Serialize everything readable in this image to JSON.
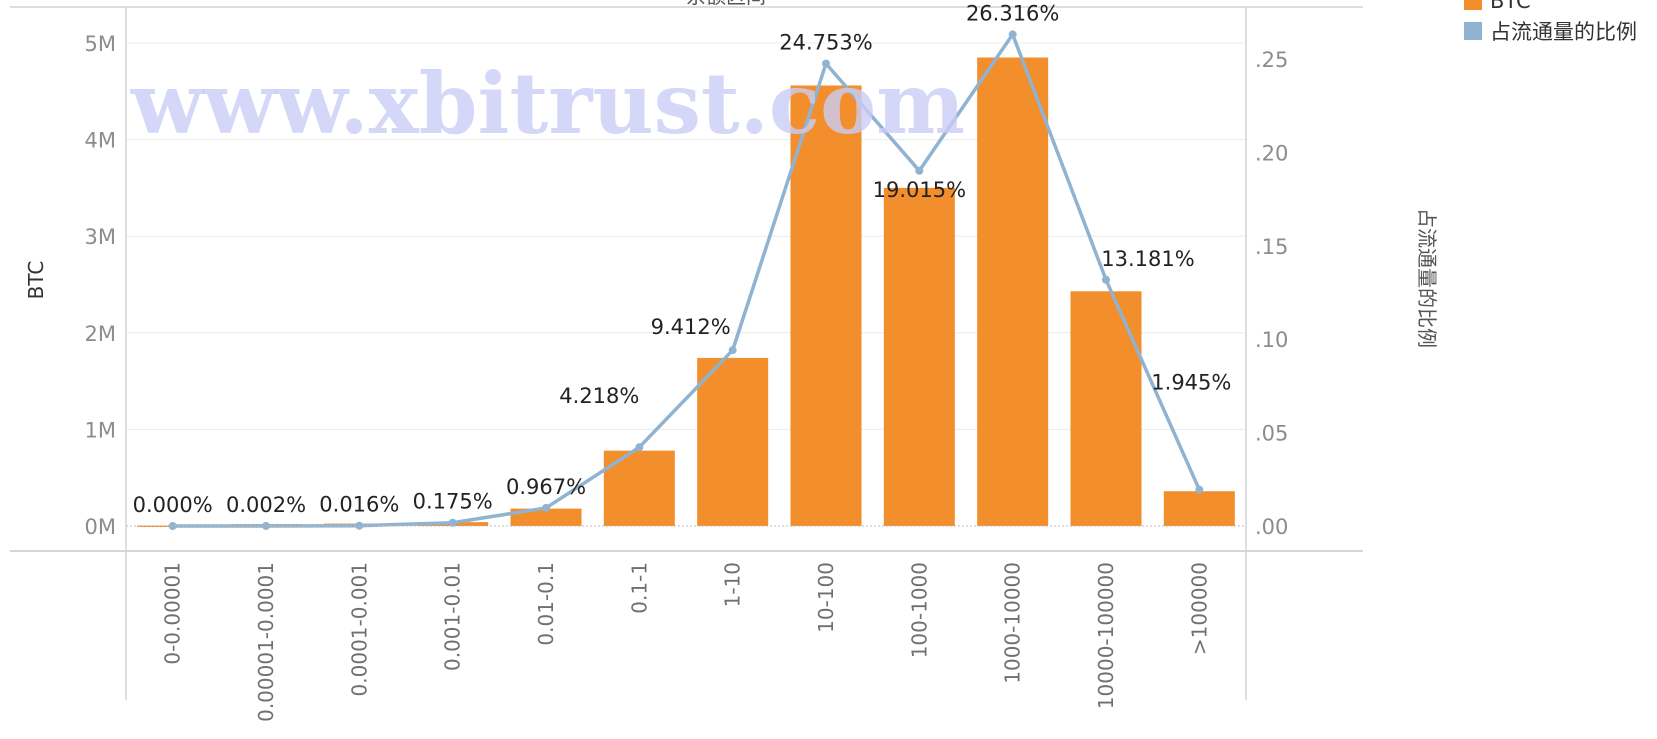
{
  "chart_data": {
    "type": "bar",
    "title": "余额区间",
    "categories": [
      "0-0.00001",
      "0.00001-0.0001",
      "0.0001-0.001",
      "0.001-0.01",
      "0.01-0.1",
      "0.1-1",
      "1-10",
      "10-100",
      "100-1000",
      "1000-10000",
      "10000-100000",
      ">100000"
    ],
    "series": [
      {
        "name": "BTC",
        "type": "bar",
        "axis": "left",
        "color": "#f28e2b",
        "values": [
          5000,
          20000,
          25000,
          40000,
          180000,
          780000,
          1740000,
          4560000,
          3500000,
          4850000,
          2430000,
          360000
        ]
      },
      {
        "name": "占流通量的比例",
        "type": "line",
        "axis": "right",
        "color": "#8fb3d0",
        "values": [
          0.0,
          2e-05,
          0.00016,
          0.00175,
          0.00967,
          0.04218,
          0.09412,
          0.24753,
          0.19015,
          0.26316,
          0.13181,
          0.01945
        ],
        "labels": [
          "0.000%",
          "0.002%",
          "0.016%",
          "0.175%",
          "0.967%",
          "4.218%",
          "9.412%",
          "24.753%",
          "19.015%",
          "26.316%",
          "13.181%",
          "1.945%"
        ]
      }
    ],
    "ylabel": "BTC",
    "ylabel_right": "占流通量的比例",
    "ylim": [
      0,
      5400000
    ],
    "ylim_right": [
      0,
      0.27
    ],
    "yticks": [
      0,
      1000000,
      2000000,
      3000000,
      4000000,
      5000000
    ],
    "yticklabels": [
      "0M",
      "1M",
      "2M",
      "3M",
      "4M",
      "5M"
    ],
    "yticks_right": [
      0,
      0.05,
      0.1,
      0.15,
      0.2,
      0.25
    ],
    "yticklabels_right": [
      ".00",
      ".05",
      ".10",
      ".15",
      ".20",
      ".25"
    ],
    "legend": [
      "BTC",
      "占流通量的比例"
    ],
    "legend_position": "top-right",
    "grid": true,
    "watermark": "www.xbitrust.com"
  }
}
